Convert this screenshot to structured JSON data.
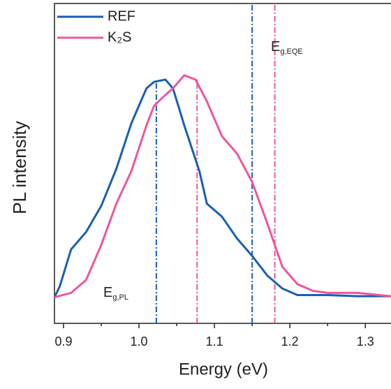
{
  "chart_data": {
    "type": "line",
    "x_label": "Energy (eV)",
    "y_label": "PL intensity",
    "xlim": [
      0.888,
      1.334
    ],
    "ylim": [
      -0.12,
      1.35
    ],
    "xticks": [
      {
        "value": 0.9,
        "label": "0.9"
      },
      {
        "value": 1.0,
        "label": "1.0"
      },
      {
        "value": 1.1,
        "label": "1.1"
      },
      {
        "value": 1.2,
        "label": "1.2"
      },
      {
        "value": 1.3,
        "label": "1.3"
      }
    ],
    "xminorticks": [
      0.95,
      1.05,
      1.15,
      1.25
    ],
    "legend": "upper-left",
    "series": [
      {
        "name": "REF",
        "color": "#1a5fb4",
        "x": [
          0.888,
          0.895,
          0.91,
          0.93,
          0.95,
          0.97,
          0.99,
          1.0,
          1.01,
          1.02,
          1.035,
          1.045,
          1.06,
          1.08,
          1.09,
          1.11,
          1.13,
          1.15,
          1.17,
          1.19,
          1.21,
          1.23,
          1.25,
          1.29,
          1.334
        ],
        "values": [
          0,
          0.05,
          0.22,
          0.3,
          0.42,
          0.59,
          0.8,
          0.88,
          0.96,
          0.99,
          1.0,
          0.96,
          0.79,
          0.58,
          0.43,
          0.37,
          0.27,
          0.19,
          0.1,
          0.04,
          0.01,
          0.01,
          0.01,
          0.005,
          0.005
        ]
      },
      {
        "name": "K₂S",
        "color": "#f0559e",
        "x": [
          0.888,
          0.91,
          0.93,
          0.95,
          0.97,
          0.99,
          1.01,
          1.02,
          1.035,
          1.045,
          1.06,
          1.075,
          1.09,
          1.11,
          1.13,
          1.15,
          1.17,
          1.19,
          1.21,
          1.23,
          1.25,
          1.29,
          1.334
        ],
        "values": [
          0,
          0.02,
          0.08,
          0.24,
          0.43,
          0.58,
          0.79,
          0.88,
          0.93,
          0.96,
          1.02,
          1.0,
          0.9,
          0.74,
          0.66,
          0.53,
          0.34,
          0.14,
          0.06,
          0.03,
          0.02,
          0.02,
          0.005
        ]
      }
    ],
    "vlines": [
      {
        "x": 1.023,
        "ymax": 0.99,
        "color": "#1a5fb4"
      },
      {
        "x": 1.15,
        "ymax": 1.35,
        "color": "#1a5fb4"
      },
      {
        "x": 1.077,
        "ymax": 1.01,
        "color": "#f0559e"
      },
      {
        "x": 1.18,
        "ymax": 1.35,
        "color": "#f0559e"
      }
    ],
    "annotations": [
      {
        "text": "E",
        "subscript": "g,PL"
      },
      {
        "text": "E",
        "subscript": "g,EQE"
      }
    ]
  }
}
